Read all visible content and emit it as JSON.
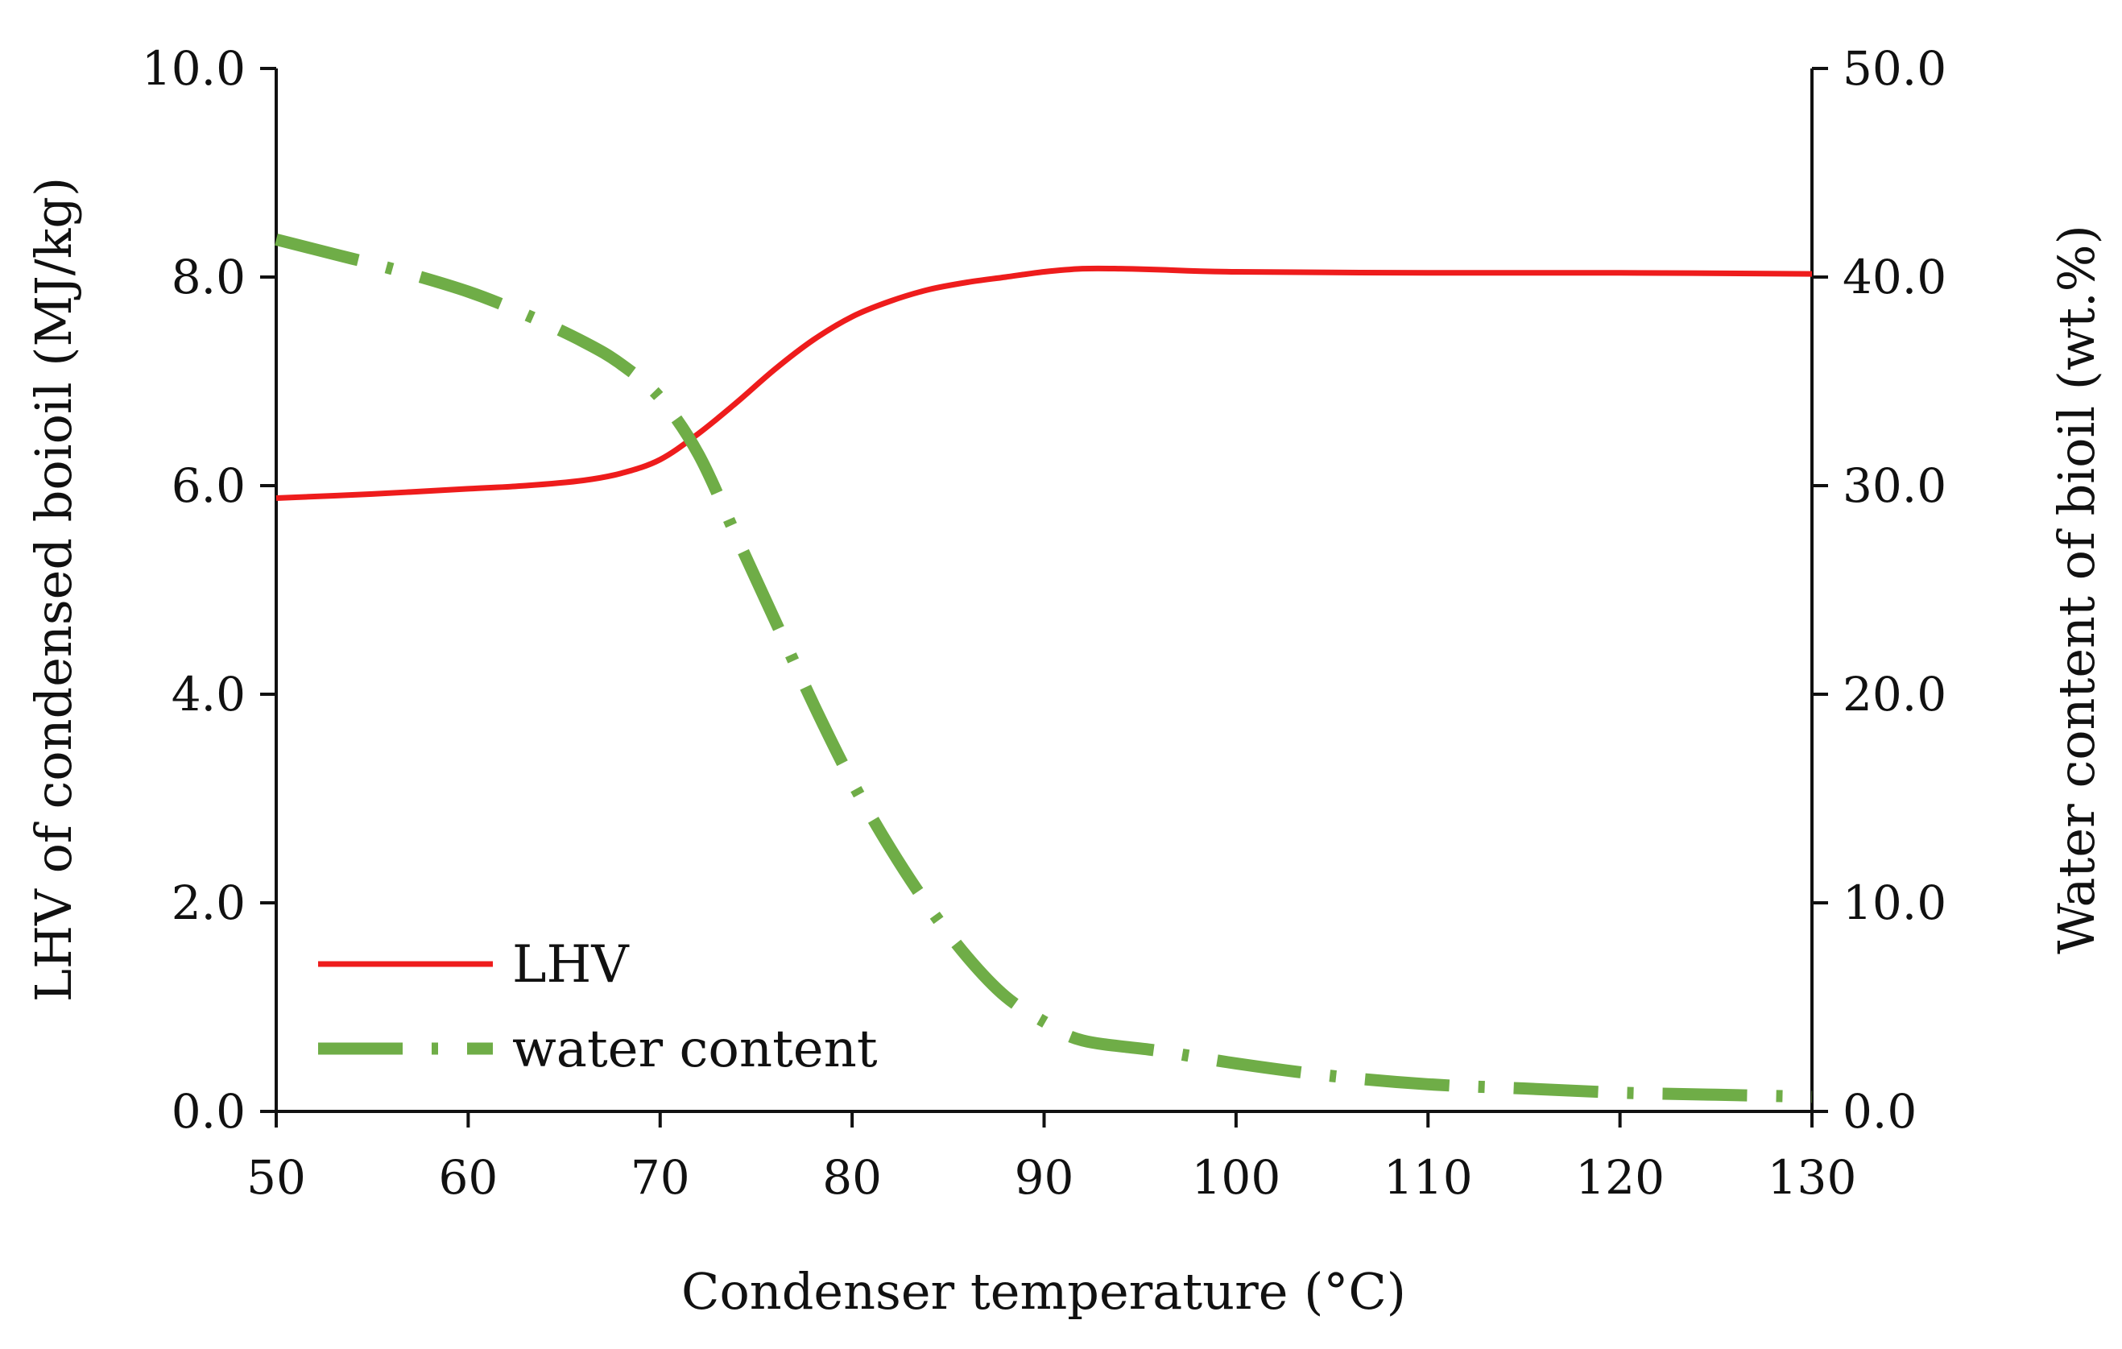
{
  "chart_data": {
    "type": "line",
    "title": "",
    "xlabel": "Condenser temperature (°C)",
    "ylabel_left": "LHV of condensed boioil (MJ/kg)",
    "ylabel_right": "Water content of bioil (wt.%)",
    "xlim": [
      50,
      130
    ],
    "ylim_left": [
      0,
      10
    ],
    "ylim_right": [
      0,
      50
    ],
    "x_ticks": [
      "50",
      "60",
      "70",
      "80",
      "90",
      "100",
      "110",
      "120",
      "130"
    ],
    "y_left_ticks": [
      "0.0",
      "2.0",
      "4.0",
      "6.0",
      "8.0",
      "10.0"
    ],
    "y_right_ticks": [
      "0.0",
      "10.0",
      "20.0",
      "30.0",
      "40.0",
      "50.0"
    ],
    "grid": false,
    "legend_position": "bottom-left",
    "series": [
      {
        "name": "LHV",
        "axis": "left",
        "style": "solid",
        "color": "#ee1c1c",
        "points": [
          [
            50,
            5.88
          ],
          [
            55,
            5.92
          ],
          [
            60,
            5.97
          ],
          [
            63,
            6.0
          ],
          [
            66,
            6.05
          ],
          [
            68,
            6.12
          ],
          [
            70,
            6.25
          ],
          [
            72,
            6.5
          ],
          [
            74,
            6.8
          ],
          [
            76,
            7.12
          ],
          [
            78,
            7.4
          ],
          [
            80,
            7.62
          ],
          [
            82,
            7.77
          ],
          [
            84,
            7.88
          ],
          [
            86,
            7.95
          ],
          [
            88,
            8.0
          ],
          [
            90,
            8.05
          ],
          [
            92,
            8.08
          ],
          [
            94,
            8.08
          ],
          [
            96,
            8.07
          ],
          [
            100,
            8.05
          ],
          [
            110,
            8.04
          ],
          [
            120,
            8.04
          ],
          [
            130,
            8.03
          ]
        ]
      },
      {
        "name": "water content",
        "axis": "right",
        "style": "dash-dot",
        "color": "#6fad47",
        "points": [
          [
            50,
            41.8
          ],
          [
            53,
            41.1
          ],
          [
            56,
            40.4
          ],
          [
            60,
            39.3
          ],
          [
            63,
            38.2
          ],
          [
            66,
            36.9
          ],
          [
            68,
            35.8
          ],
          [
            70,
            34.2
          ],
          [
            72,
            31.5
          ],
          [
            74,
            27.5
          ],
          [
            76,
            23.5
          ],
          [
            78,
            19.5
          ],
          [
            80,
            15.8
          ],
          [
            82,
            12.6
          ],
          [
            84,
            9.8
          ],
          [
            86,
            7.4
          ],
          [
            88,
            5.5
          ],
          [
            90,
            4.3
          ],
          [
            92,
            3.4
          ],
          [
            96,
            2.9
          ],
          [
            100,
            2.3
          ],
          [
            105,
            1.7
          ],
          [
            110,
            1.3
          ],
          [
            115,
            1.1
          ],
          [
            120,
            0.9
          ],
          [
            125,
            0.8
          ],
          [
            130,
            0.7
          ]
        ]
      }
    ]
  }
}
